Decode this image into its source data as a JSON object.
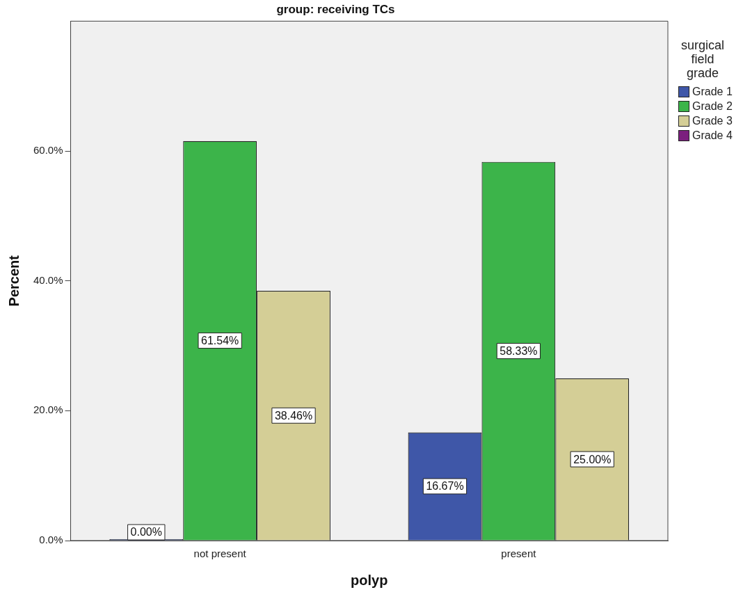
{
  "chart_data": {
    "type": "bar",
    "title": "group: receiving TCs",
    "xlabel": "polyp",
    "ylabel": "Percent",
    "legend_title": "surgical field grade",
    "legend": "right",
    "grid": false,
    "categories": [
      "not present",
      "present"
    ],
    "series": [
      {
        "name": "Grade 1",
        "color": "#3f57a8",
        "values": [
          0.0,
          16.67
        ],
        "value_labels": [
          "0.00%",
          "16.67%"
        ]
      },
      {
        "name": "Grade 2",
        "color": "#3cb44a",
        "values": [
          61.54,
          58.33
        ],
        "value_labels": [
          "61.54%",
          "58.33%"
        ]
      },
      {
        "name": "Grade 3",
        "color": "#d4ce96",
        "values": [
          38.46,
          25.0
        ],
        "value_labels": [
          "38.46%",
          "25.00%"
        ]
      },
      {
        "name": "Grade 4",
        "color": "#7b1f7e",
        "values": [
          null,
          null
        ],
        "value_labels": [
          null,
          null
        ]
      }
    ],
    "ylim": [
      0,
      80
    ],
    "yticks": [
      {
        "value": 0,
        "label": "0.0%"
      },
      {
        "value": 20,
        "label": "20.0%"
      },
      {
        "value": 40,
        "label": "40.0%"
      },
      {
        "value": 60,
        "label": "60.0%"
      }
    ]
  }
}
